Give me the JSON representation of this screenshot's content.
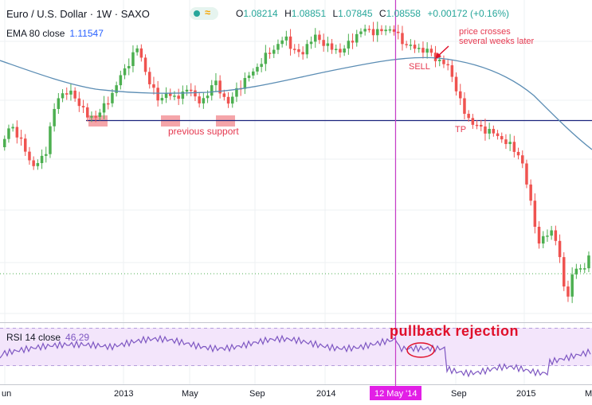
{
  "header": {
    "title": "Euro / U.S. Dollar · 1W · SAXO",
    "open_label": "O",
    "open": "1.08214",
    "high_label": "H",
    "high": "1.08851",
    "low_label": "L",
    "low": "1.07845",
    "close_label": "C",
    "close": "1.08558",
    "change": "+0.00172 (+0.16%)"
  },
  "ema": {
    "label": "EMA 80 close",
    "value": "1.11547"
  },
  "rsi": {
    "label": "RSI 14 close",
    "value": "46.29"
  },
  "annotations": {
    "price_crosses_line1": "price crosses",
    "price_crosses_line2": "several weeks later",
    "sell": "SELL",
    "tp": "TP",
    "previous_support": "previous support",
    "pullback": "pullback rejection"
  },
  "colors": {
    "up": "#4caf50",
    "down": "#ef5350",
    "ema": "#5b8db4",
    "rsi": "#7e57c2",
    "marker": "#c83cc8",
    "annotation": "#e53950",
    "support": "#1a237e"
  },
  "chart_data": [
    {
      "type": "candlestick",
      "x_ticks": [
        "un",
        "2013",
        "May",
        "Sep",
        "2014",
        "12 May '14",
        "Sep",
        "2015",
        "M"
      ],
      "highlighted_date": "12 May '14",
      "current_ohlc": {
        "open": 1.08214,
        "high": 1.08851,
        "low": 1.07845,
        "close": 1.08558
      },
      "support_level_note": "previous support",
      "series": [
        {
          "name": "EMA 80 close",
          "last_value": 1.11547
        }
      ]
    },
    {
      "type": "line",
      "series": [
        {
          "name": "RSI 14 close",
          "last_value": 46.29
        }
      ],
      "ylim": [
        0,
        100
      ],
      "bands": [
        30,
        70
      ]
    }
  ]
}
